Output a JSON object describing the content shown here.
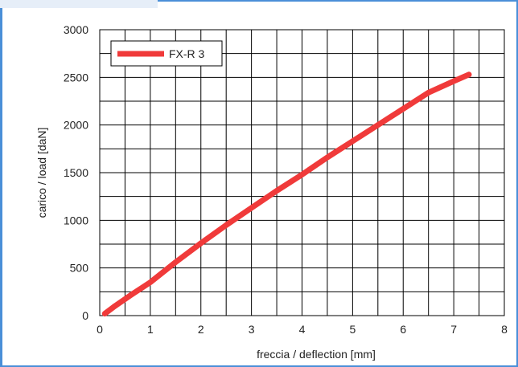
{
  "chart_data": {
    "type": "line",
    "xlabel": "freccia / deflection [mm]",
    "ylabel": "carico / load [daN]",
    "xlim": [
      0,
      8
    ],
    "ylim": [
      0,
      3000
    ],
    "x_ticks": [
      "0",
      "1",
      "2",
      "3",
      "4",
      "5",
      "6",
      "7",
      "8"
    ],
    "y_ticks": [
      "0",
      "500",
      "1000",
      "1500",
      "2000",
      "2500",
      "3000"
    ],
    "grid": true,
    "legend_position": "top-left",
    "series": [
      {
        "name": "FX-R 3",
        "color": "#f03a3a",
        "x": [
          0.1,
          0.3,
          0.6,
          1.0,
          1.5,
          2.0,
          2.5,
          3.0,
          3.5,
          4.0,
          4.5,
          5.0,
          5.5,
          6.0,
          6.5,
          7.0,
          7.3
        ],
        "y": [
          20,
          100,
          210,
          350,
          560,
          760,
          950,
          1130,
          1310,
          1480,
          1660,
          1830,
          2000,
          2170,
          2340,
          2460,
          2530
        ]
      }
    ]
  }
}
